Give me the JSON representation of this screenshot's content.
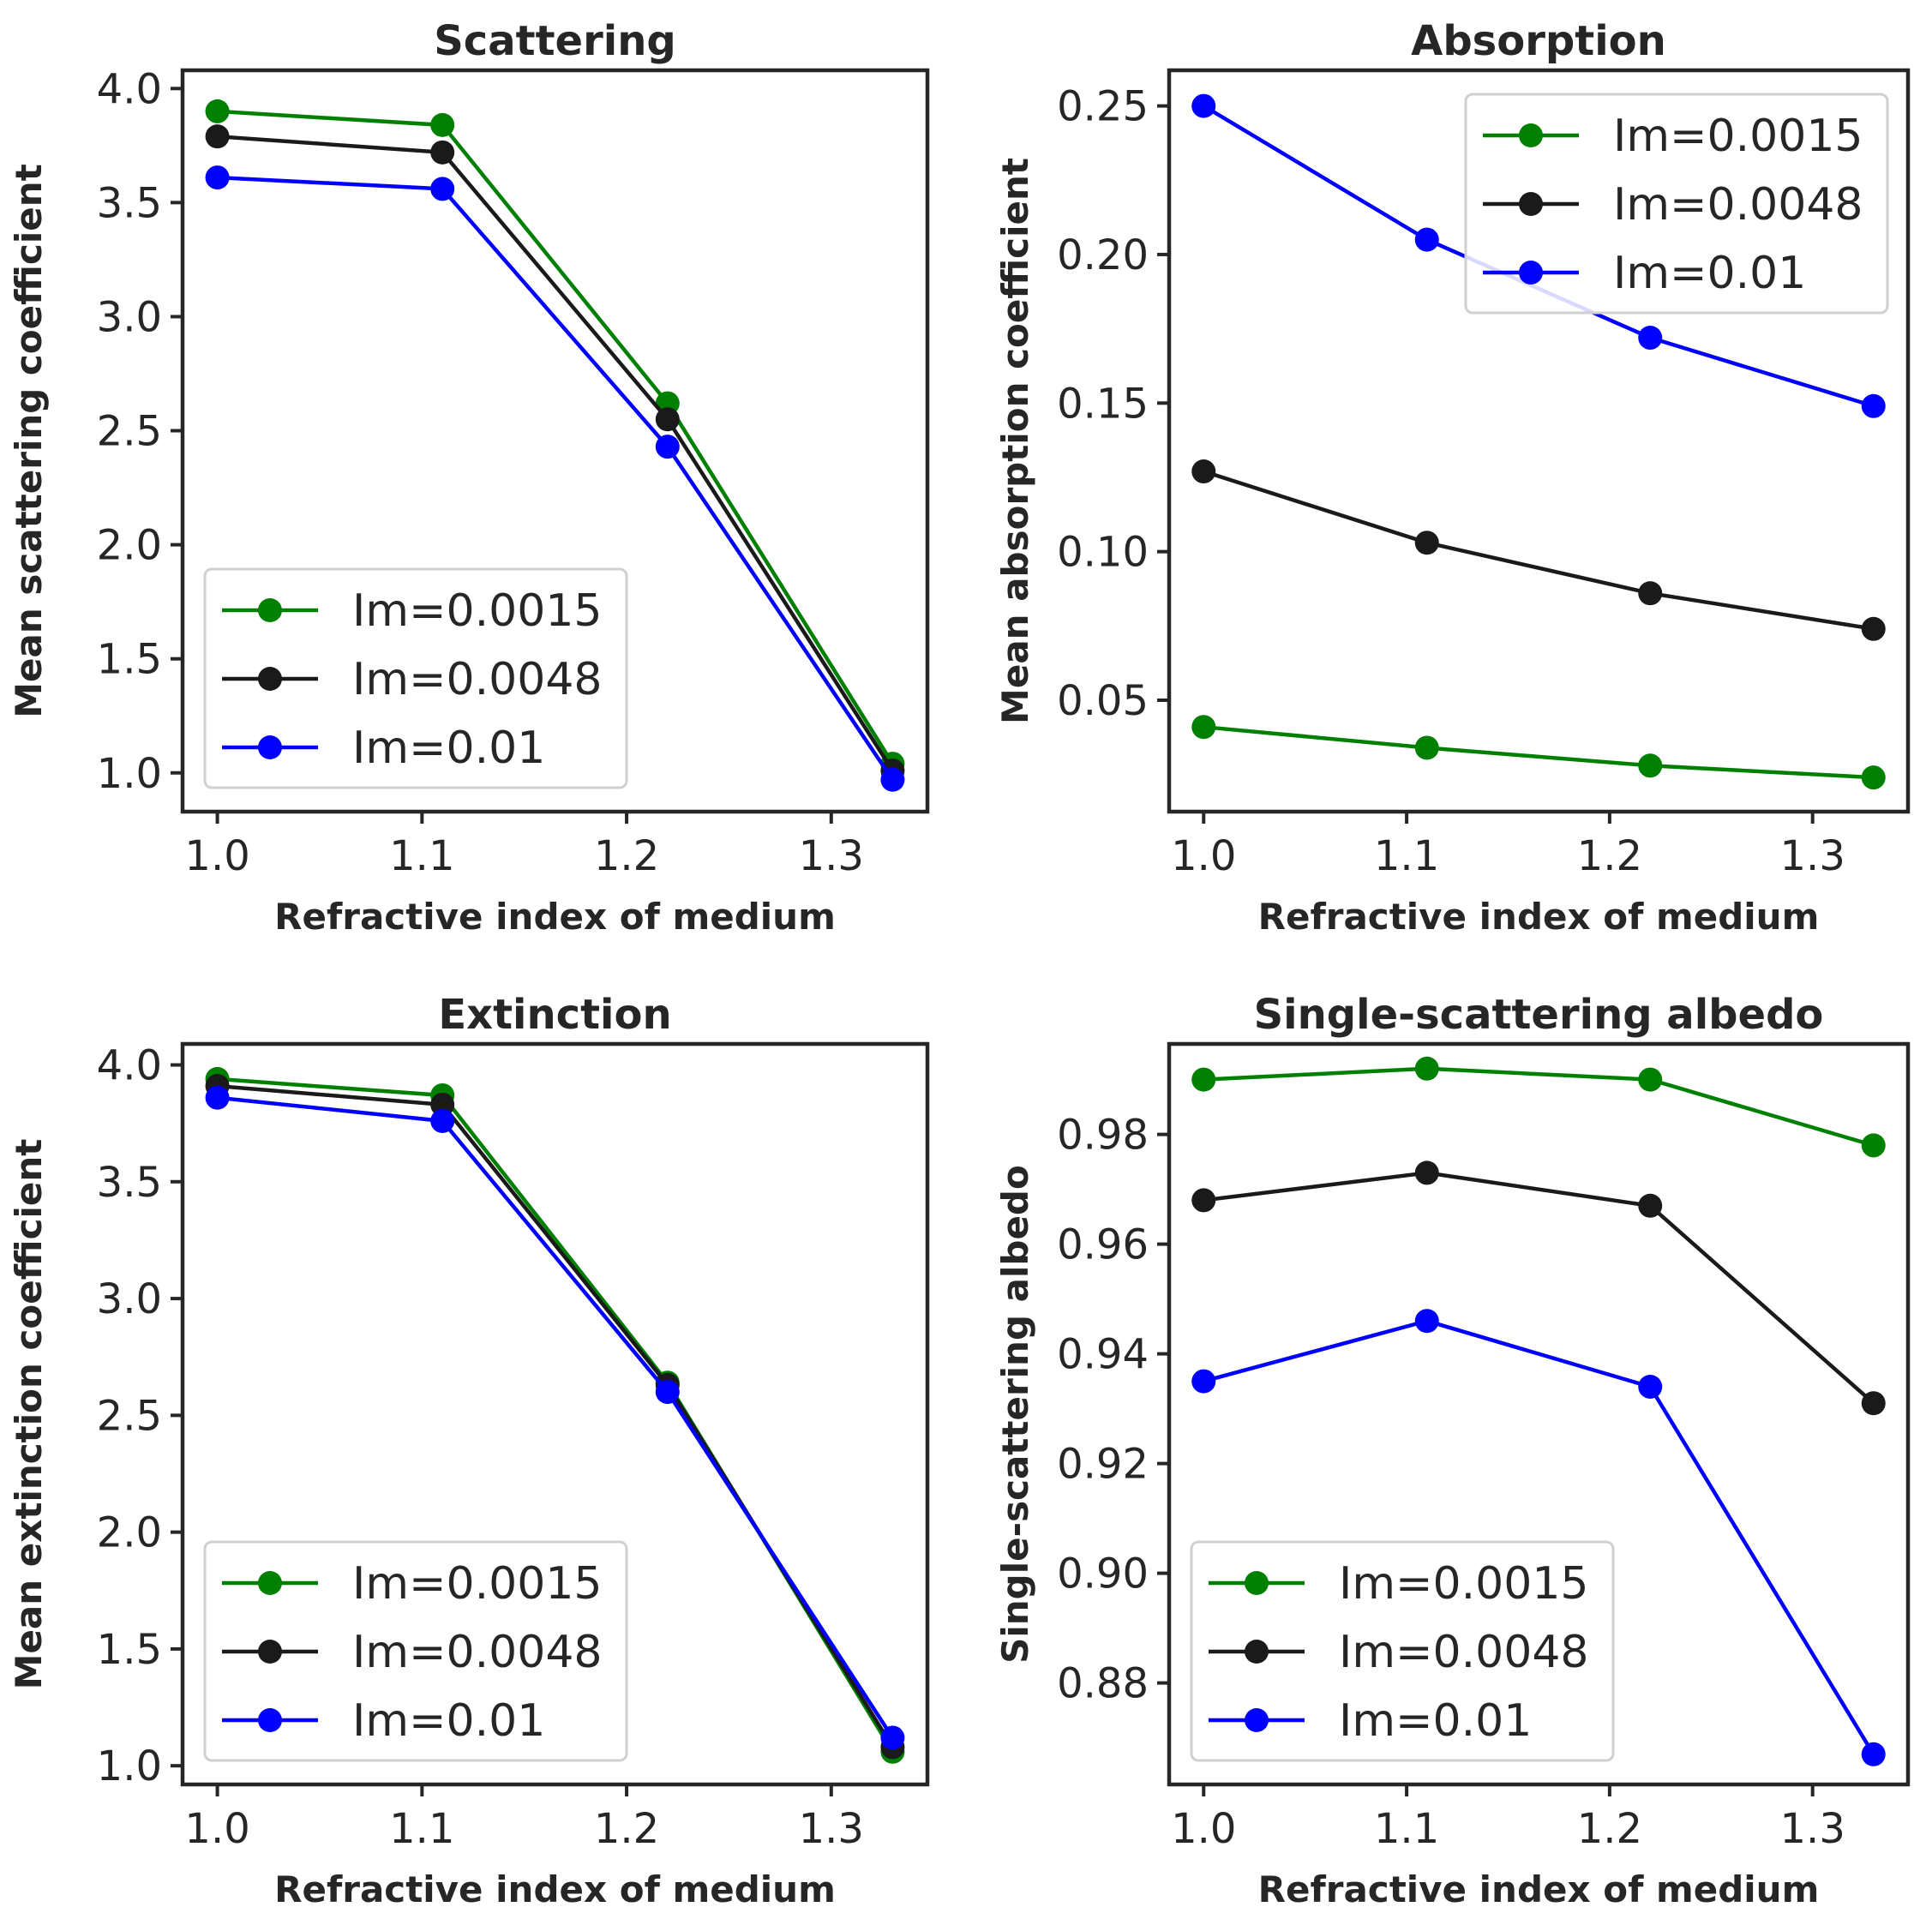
{
  "chart_data": [
    {
      "type": "line",
      "title": "Scattering",
      "xlabel": "Refractive index of medium",
      "ylabel": "Mean scattering coefficient",
      "x": [
        1.0,
        1.11,
        1.22,
        1.33
      ],
      "xlim": [
        0.983,
        1.347
      ],
      "ylim": [
        0.83,
        4.08
      ],
      "xticks": [
        "1.0",
        "1.1",
        "1.2",
        "1.3"
      ],
      "xtick_values": [
        1.0,
        1.1,
        1.2,
        1.3
      ],
      "yticks": [
        "1.0",
        "1.5",
        "2.0",
        "2.5",
        "3.0",
        "3.5",
        "4.0"
      ],
      "ytick_values": [
        1.0,
        1.5,
        2.0,
        2.5,
        3.0,
        3.5,
        4.0
      ],
      "legend_position": "lower-left",
      "series": [
        {
          "name": "Im=0.0015",
          "color": "#008000",
          "values": [
            3.9,
            3.84,
            2.62,
            1.04
          ]
        },
        {
          "name": "Im=0.0048",
          "color": "#1a1a1a",
          "values": [
            3.79,
            3.72,
            2.55,
            1.01
          ]
        },
        {
          "name": "Im=0.01",
          "color": "#0000ff",
          "values": [
            3.61,
            3.56,
            2.43,
            0.97
          ]
        }
      ]
    },
    {
      "type": "line",
      "title": "Absorption",
      "xlabel": "Refractive index of medium",
      "ylabel": "Mean absorption coefficient",
      "x": [
        1.0,
        1.11,
        1.22,
        1.33
      ],
      "xlim": [
        0.983,
        1.347
      ],
      "ylim": [
        0.0125,
        0.262
      ],
      "xticks": [
        "1.0",
        "1.1",
        "1.2",
        "1.3"
      ],
      "xtick_values": [
        1.0,
        1.1,
        1.2,
        1.3
      ],
      "yticks": [
        "0.05",
        "0.10",
        "0.15",
        "0.20",
        "0.25"
      ],
      "ytick_values": [
        0.05,
        0.1,
        0.15,
        0.2,
        0.25
      ],
      "legend_position": "upper-right",
      "series": [
        {
          "name": "Im=0.0015",
          "color": "#008000",
          "values": [
            0.041,
            0.034,
            0.028,
            0.024
          ]
        },
        {
          "name": "Im=0.0048",
          "color": "#1a1a1a",
          "values": [
            0.127,
            0.103,
            0.086,
            0.074
          ]
        },
        {
          "name": "Im=0.01",
          "color": "#0000ff",
          "values": [
            0.25,
            0.205,
            0.172,
            0.149
          ]
        }
      ]
    },
    {
      "type": "line",
      "title": "Extinction",
      "xlabel": "Refractive index of medium",
      "ylabel": "Mean extinction coefficient",
      "x": [
        1.0,
        1.11,
        1.22,
        1.33
      ],
      "xlim": [
        0.983,
        1.347
      ],
      "ylim": [
        0.92,
        4.09
      ],
      "xticks": [
        "1.0",
        "1.1",
        "1.2",
        "1.3"
      ],
      "xtick_values": [
        1.0,
        1.1,
        1.2,
        1.3
      ],
      "yticks": [
        "1.0",
        "1.5",
        "2.0",
        "2.5",
        "3.0",
        "3.5",
        "4.0"
      ],
      "ytick_values": [
        1.0,
        1.5,
        2.0,
        2.5,
        3.0,
        3.5,
        4.0
      ],
      "legend_position": "lower-left",
      "series": [
        {
          "name": "Im=0.0015",
          "color": "#008000",
          "values": [
            3.94,
            3.87,
            2.64,
            1.06
          ]
        },
        {
          "name": "Im=0.0048",
          "color": "#1a1a1a",
          "values": [
            3.91,
            3.83,
            2.63,
            1.08
          ]
        },
        {
          "name": "Im=0.01",
          "color": "#0000ff",
          "values": [
            3.86,
            3.76,
            2.6,
            1.12
          ]
        }
      ]
    },
    {
      "type": "line",
      "title": "Single-scattering albedo",
      "xlabel": "Refractive index of medium",
      "ylabel": "Single-scattering albedo",
      "x": [
        1.0,
        1.11,
        1.22,
        1.33
      ],
      "xlim": [
        0.983,
        1.347
      ],
      "ylim": [
        0.8615,
        0.9965
      ],
      "xticks": [
        "1.0",
        "1.1",
        "1.2",
        "1.3"
      ],
      "xtick_values": [
        1.0,
        1.1,
        1.2,
        1.3
      ],
      "yticks": [
        "0.88",
        "0.90",
        "0.92",
        "0.94",
        "0.96",
        "0.98"
      ],
      "ytick_values": [
        0.88,
        0.9,
        0.92,
        0.94,
        0.96,
        0.98
      ],
      "legend_position": "lower-left",
      "series": [
        {
          "name": "Im=0.0015",
          "color": "#008000",
          "values": [
            0.99,
            0.992,
            0.99,
            0.978
          ]
        },
        {
          "name": "Im=0.0048",
          "color": "#1a1a1a",
          "values": [
            0.968,
            0.973,
            0.967,
            0.931
          ]
        },
        {
          "name": "Im=0.01",
          "color": "#0000ff",
          "values": [
            0.935,
            0.946,
            0.934,
            0.867
          ]
        }
      ]
    }
  ]
}
